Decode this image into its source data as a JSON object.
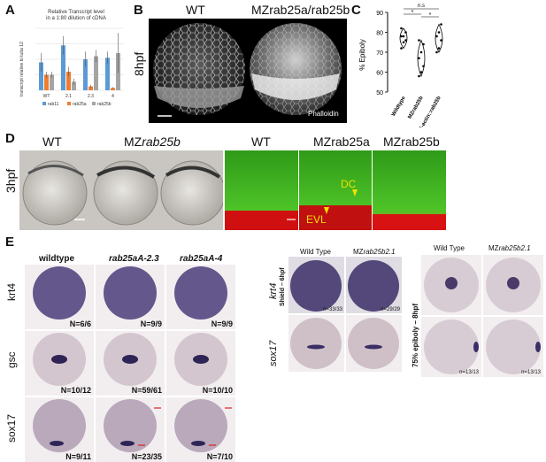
{
  "panels": {
    "A": "A",
    "B": "B",
    "C": "C",
    "D": "D",
    "E": "E"
  },
  "colors": {
    "rab11": "#5b9bd5",
    "rab25a": "#ed7d31",
    "rab25b": "#a5a5a5",
    "ish_stain": "#3a2a6a",
    "fluor_green": "#3cb81e",
    "fluor_red": "#e01010",
    "annotation_yellow": "#f0e000",
    "arrow_red": "#e02020"
  },
  "chart_data": [
    {
      "type": "bar",
      "title": "Relative Transcript level",
      "subtitle": "in a 1:80 dilution of cDNA",
      "xlabel": "",
      "ylabel": "transcript relative to tuba 12",
      "categories": [
        "WT",
        "2.1",
        "2.3",
        "4"
      ],
      "series": [
        {
          "name": "rab11",
          "values": [
            1.8,
            2.9,
            2.0,
            2.1
          ]
        },
        {
          "name": "rab25a",
          "values": [
            1.0,
            1.2,
            0.25,
            0.15
          ]
        },
        {
          "name": "rab25b",
          "values": [
            1.0,
            0.55,
            2.2,
            2.4
          ]
        }
      ],
      "errors": [
        [
          0.6,
          0.6,
          0.5,
          0.4
        ],
        [
          0.2,
          0.3,
          0.1,
          0.05
        ],
        [
          0.2,
          0.2,
          0.4,
          1.3
        ]
      ],
      "ylim": [
        0,
        4
      ],
      "grid": true,
      "legend": "bottom"
    },
    {
      "type": "scatter",
      "title": "",
      "xlabel": "",
      "ylabel": "% Epiboly",
      "categories": [
        "Wildtype",
        "MZrab25b",
        "Tg:B-actin::rab25b"
      ],
      "series": [
        {
          "name": "Wildtype",
          "values": [
            72,
            75,
            76,
            78,
            78,
            80,
            82
          ]
        },
        {
          "name": "MZrab25b",
          "values": [
            58,
            60,
            63,
            67,
            70,
            74,
            76
          ]
        },
        {
          "name": "Tg:B-actin::rab25b",
          "values": [
            70,
            72,
            76,
            78,
            80,
            84
          ]
        }
      ],
      "ylim": [
        50,
        90
      ],
      "yticks": [
        "50",
        "60",
        "70",
        "80",
        "90"
      ],
      "annotations": [
        "n.s",
        "*",
        "*"
      ],
      "grid": false
    }
  ],
  "panel_b": {
    "headers": [
      "WT",
      "MZrab25a/rab25b"
    ],
    "stage": "8hpf",
    "stain": "Phalloidin"
  },
  "panel_d": {
    "stage": "3hpf",
    "headers_bf": [
      "WT",
      "MZ",
      "rab25b"
    ],
    "headers_fl": [
      "WT",
      "MZrab25a",
      "MZrab25b"
    ],
    "annotations": [
      "DC",
      "EVL"
    ]
  },
  "panel_e_left": {
    "headers": [
      "wildtype",
      "rab25aA-2.3",
      "rab25aA-4"
    ],
    "rows": [
      {
        "gene": "krt4",
        "counts": [
          "N=6/6",
          "N=9/9",
          "N=9/9"
        ]
      },
      {
        "gene": "gsc",
        "counts": [
          "N=10/12",
          "N=59/61",
          "N=10/10"
        ]
      },
      {
        "gene": "sox17",
        "counts": [
          "N=9/11",
          "N=23/35",
          "N=7/10"
        ]
      }
    ]
  },
  "panel_e_mid": {
    "headers": [
      "Wild Type",
      "MZ",
      "rab25b2.1"
    ],
    "row_labels": [
      "krt4",
      "sox17"
    ],
    "stage": "Shield – 6hpf",
    "counts": [
      "n=33/33",
      "n=29/29"
    ]
  },
  "panel_e_right": {
    "headers": [
      "Wild Type",
      "MZ",
      "rab25b2.1"
    ],
    "stage": "75% epiboly – 8hpf",
    "counts": [
      "n=13/13",
      "n=13/13"
    ]
  }
}
